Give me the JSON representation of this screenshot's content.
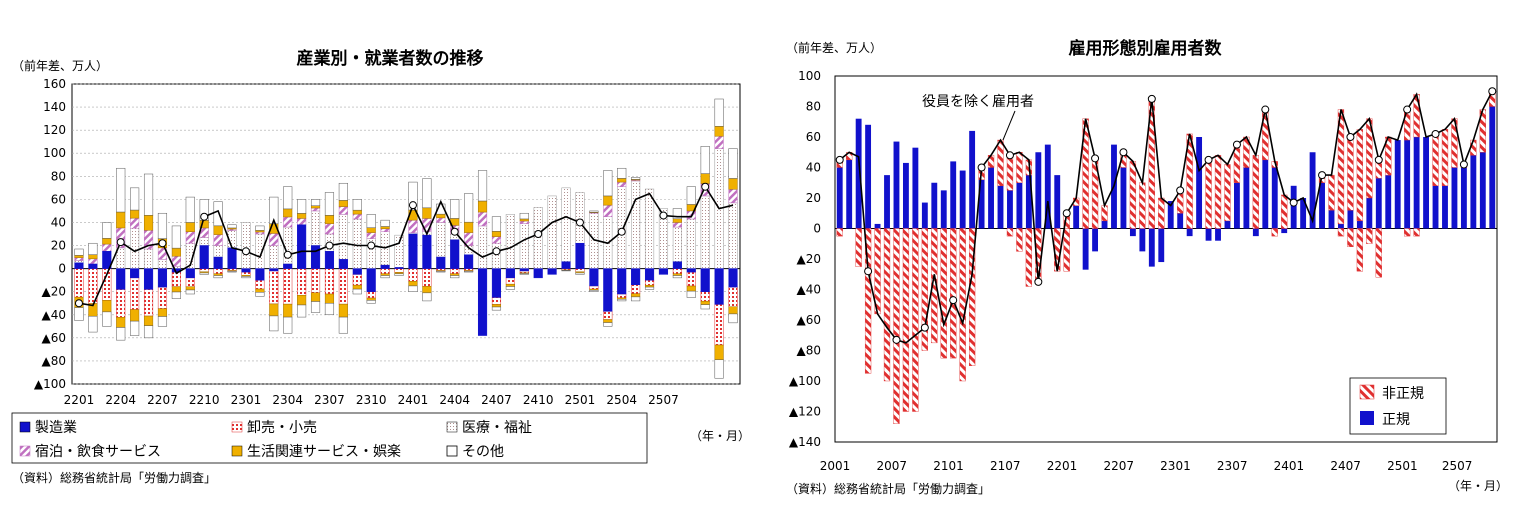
{
  "colors": {
    "manufacturing": "#1111cc",
    "wholesale": "#e03030",
    "medical": "#c8a8a8",
    "hotel": "#c070c0",
    "living": "#f0b000",
    "other": "#ffffff",
    "regular": "#1111cc",
    "nonregular": "#e03030"
  },
  "chart_data": [
    {
      "type": "bar",
      "stacked": true,
      "title": "産業別・就業者数の推移",
      "unit": "（前年差、万人）",
      "xaxis_unit": "（年・月）",
      "source": "（資料）総務省統計局「労働力調査」",
      "ylim": [
        -100,
        160
      ],
      "yticks": [
        {
          "v": 160,
          "t": "160"
        },
        {
          "v": 140,
          "t": "140"
        },
        {
          "v": 120,
          "t": "120"
        },
        {
          "v": 100,
          "t": "100"
        },
        {
          "v": 80,
          "t": "80"
        },
        {
          "v": 60,
          "t": "60"
        },
        {
          "v": 40,
          "t": "40"
        },
        {
          "v": 20,
          "t": "20"
        },
        {
          "v": 0,
          "t": "0"
        },
        {
          "v": -20,
          "t": "▲20"
        },
        {
          "v": -40,
          "t": "▲40"
        },
        {
          "v": -60,
          "t": "▲60"
        },
        {
          "v": -80,
          "t": "▲80"
        },
        {
          "v": -100,
          "t": "▲100"
        }
      ],
      "x_tick_labels": [
        "2201",
        "2204",
        "2207",
        "2210",
        "2301",
        "2304",
        "2307",
        "2310",
        "2401",
        "2404",
        "2407",
        "2410",
        "2501",
        "2504",
        "2507"
      ],
      "legend": [
        "製造業",
        "卸売・小売",
        "医療・福祉",
        "宿泊・飲食サービス",
        "生活関連サービス・娯楽",
        "その他"
      ],
      "series": [
        {
          "name": "製造業",
          "values": [
            5,
            4,
            15,
            -18,
            -8,
            -18,
            -16,
            -3,
            -8,
            20,
            10,
            18,
            -3,
            -10,
            -2,
            4,
            38,
            20,
            15,
            8,
            -5,
            -20,
            3,
            1,
            30,
            29,
            10,
            25,
            12,
            -58,
            -25,
            -8,
            -2,
            -8,
            -5,
            6,
            22,
            -15,
            -37,
            -22,
            -14,
            -10,
            -5,
            6,
            -3,
            -20,
            -31,
            -16
          ],
          "pos_line": [
            7,
            3,
            15,
            18,
            35,
            17,
            8,
            2,
            22,
            27,
            20,
            33,
            40,
            30,
            20,
            36,
            38,
            50,
            30,
            47,
            43,
            26,
            32,
            29,
            31,
            32,
            40,
            30,
            20,
            37,
            22,
            47,
            39,
            53,
            63,
            70,
            66,
            48,
            45,
            71,
            76,
            69,
            52,
            36,
            43,
            63,
            104,
            57
          ],
          "pos_top": [
            17,
            22,
            40,
            87,
            70,
            82,
            48,
            37,
            62,
            60,
            58,
            38,
            30,
            37,
            62,
            71,
            60,
            60,
            66,
            74,
            60,
            47,
            42,
            28,
            75,
            78,
            56,
            60,
            65,
            85,
            45,
            41,
            48,
            48,
            33,
            43,
            55,
            50,
            85,
            87,
            79,
            68,
            52,
            52,
            71,
            106,
            147,
            104
          ],
          "neg_bottom": [
            -45,
            -55,
            -50,
            -62,
            -58,
            -60,
            -50,
            -26,
            -22,
            -5,
            -8,
            -3,
            -8,
            -24,
            -54,
            -56,
            -42,
            -38,
            -40,
            -56,
            -22,
            -30,
            -8,
            -6,
            -20,
            -28,
            -3,
            -8,
            -3,
            -58,
            -36,
            -18,
            -5,
            -5,
            -2,
            -2,
            -5,
            -20,
            -50,
            -28,
            -28,
            -18,
            -5,
            -8,
            -25,
            -35,
            -95,
            -47
          ]
        },
        {
          "name": "合計",
          "type": "line",
          "values": [
            -30,
            -32,
            -5,
            23,
            15,
            20,
            22,
            -4,
            3,
            45,
            50,
            18,
            15,
            10,
            42,
            12,
            15,
            15,
            20,
            22,
            20,
            20,
            18,
            22,
            55,
            30,
            58,
            32,
            18,
            10,
            15,
            18,
            25,
            30,
            40,
            45,
            40,
            25,
            22,
            32,
            60,
            65,
            46,
            45,
            45,
            71,
            52,
            55
          ]
        }
      ]
    },
    {
      "type": "bar",
      "stacked": true,
      "title": "雇用形態別雇用者数",
      "unit": "（前年差、万人）",
      "xaxis_unit": "（年・月）",
      "source": "（資料）総務省統計局「労働力調査」",
      "annotation": "役員を除く雇用者",
      "ylim": [
        -140,
        100
      ],
      "yticks": [
        {
          "v": 100,
          "t": "100"
        },
        {
          "v": 80,
          "t": "80"
        },
        {
          "v": 60,
          "t": "60"
        },
        {
          "v": 40,
          "t": "40"
        },
        {
          "v": 20,
          "t": "20"
        },
        {
          "v": 0,
          "t": "0"
        },
        {
          "v": -20,
          "t": "▲20"
        },
        {
          "v": -40,
          "t": "▲40"
        },
        {
          "v": -60,
          "t": "▲60"
        },
        {
          "v": -80,
          "t": "▲80"
        },
        {
          "v": -100,
          "t": "▲100"
        },
        {
          "v": -120,
          "t": "▲120"
        },
        {
          "v": -140,
          "t": "▲140"
        }
      ],
      "x_tick_labels": [
        "2001",
        "2007",
        "2101",
        "2107",
        "2201",
        "2207",
        "2301",
        "2307",
        "2401",
        "2407",
        "2501",
        "2507"
      ],
      "legend": [
        "非正規",
        "正規"
      ],
      "series": [
        {
          "name": "正規",
          "values": [
            40,
            45,
            72,
            68,
            3,
            35,
            57,
            43,
            53,
            17,
            30,
            25,
            44,
            38,
            64,
            32,
            40,
            28,
            25,
            30,
            35,
            50,
            55,
            35,
            0,
            15,
            -27,
            -15,
            5,
            55,
            40,
            -5,
            -15,
            -25,
            -22,
            18,
            10,
            -5,
            60,
            -8,
            -8,
            5,
            30,
            40,
            -5,
            45,
            40,
            -3,
            28,
            20,
            50,
            30,
            12,
            3,
            12,
            5,
            20,
            33,
            35,
            58,
            58,
            60,
            60,
            28,
            28,
            40,
            40,
            48,
            50,
            80
          ],
          "neg_nonreg": [
            -5,
            0,
            -25,
            -95,
            -55,
            -100,
            -128,
            -120,
            -120,
            -80,
            -75,
            -85,
            -85,
            -100,
            -90,
            0,
            0,
            0,
            -5,
            -15,
            -38,
            -35,
            0,
            -10,
            -28,
            0,
            0,
            0,
            0,
            0,
            0,
            0,
            0,
            0,
            0,
            0,
            0,
            0,
            0,
            0,
            0,
            0,
            0,
            0,
            0,
            0,
            -5,
            0,
            0,
            0,
            0,
            0,
            0,
            -5,
            -12,
            -28,
            -10,
            -32,
            0,
            0,
            -5,
            -5,
            0,
            0,
            0,
            0,
            0,
            0,
            0,
            0
          ],
          "top": [
            45,
            50,
            47,
            -28,
            -56,
            -65,
            -73,
            -75,
            -70,
            -65,
            -30,
            -63,
            -47,
            -62,
            -30,
            40,
            48,
            58,
            48,
            50,
            45,
            -35,
            18,
            -28,
            10,
            20,
            72,
            46,
            15,
            28,
            50,
            44,
            30,
            85,
            20,
            15,
            25,
            62,
            38,
            45,
            48,
            42,
            55,
            60,
            48,
            78,
            44,
            22,
            17,
            20,
            5,
            35,
            35,
            78,
            60,
            65,
            72,
            45,
            60,
            58,
            78,
            88,
            60,
            62,
            65,
            72,
            42,
            58,
            78,
            90
          ],
          "note": "top = total line value (役員を除く雇用者)"
        },
        {
          "name": "役員を除く雇用者",
          "type": "line",
          "values": [
            45,
            50,
            47,
            -28,
            -56,
            -65,
            -73,
            -75,
            -70,
            -65,
            -30,
            -63,
            -47,
            -62,
            -30,
            40,
            48,
            58,
            48,
            50,
            45,
            -35,
            18,
            -28,
            10,
            20,
            72,
            46,
            15,
            28,
            50,
            44,
            30,
            85,
            20,
            15,
            25,
            62,
            38,
            45,
            48,
            42,
            55,
            60,
            48,
            78,
            44,
            22,
            17,
            20,
            5,
            35,
            35,
            78,
            60,
            65,
            72,
            45,
            60,
            58,
            78,
            88,
            60,
            62,
            65,
            72,
            42,
            58,
            78,
            90
          ]
        }
      ]
    }
  ]
}
